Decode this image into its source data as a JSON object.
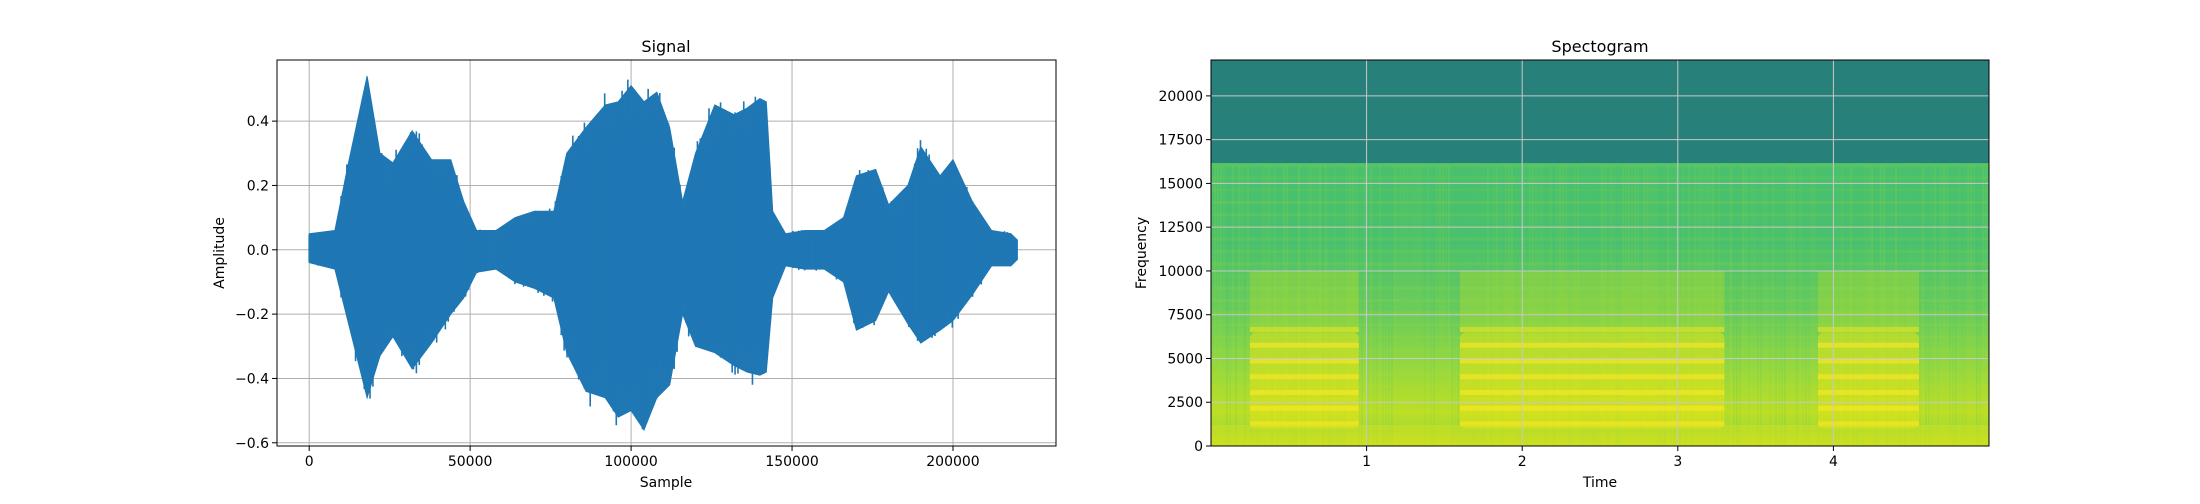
{
  "chart_data": [
    {
      "type": "line",
      "title": "Signal",
      "xlabel": "Sample",
      "ylabel": "Amplitude",
      "xlim": [
        -10000,
        232000
      ],
      "ylim": [
        -0.61,
        0.59
      ],
      "xticks": [
        0,
        50000,
        100000,
        150000,
        200000
      ],
      "xtick_labels": [
        "0",
        "50000",
        "100000",
        "150000",
        "200000"
      ],
      "yticks": [
        -0.6,
        -0.4,
        -0.2,
        0.0,
        0.2,
        0.4
      ],
      "ytick_labels": [
        "−0.6",
        "−0.4",
        "−0.2",
        "0.0",
        "0.2",
        "0.4"
      ],
      "grid": true,
      "color": "#1f77b4",
      "series": [
        {
          "x": [
            0,
            8000,
            12000,
            18000,
            22000,
            26000,
            32000,
            38000,
            44000,
            48000,
            52000,
            58000,
            64000,
            70000,
            76000,
            80000,
            86000,
            92000,
            96000,
            100000,
            104000,
            108000,
            112000,
            116000,
            120000,
            126000,
            132000,
            136000,
            140000,
            142000,
            144000,
            148000,
            154000,
            160000,
            166000,
            170000,
            176000,
            180000,
            186000,
            190000,
            196000,
            200000,
            206000,
            212000,
            218000,
            220000
          ],
          "upper": [
            0.05,
            0.06,
            0.26,
            0.54,
            0.3,
            0.27,
            0.37,
            0.28,
            0.28,
            0.15,
            0.06,
            0.06,
            0.1,
            0.12,
            0.12,
            0.3,
            0.38,
            0.45,
            0.46,
            0.51,
            0.46,
            0.49,
            0.38,
            0.15,
            0.3,
            0.45,
            0.42,
            0.44,
            0.47,
            0.46,
            0.12,
            0.05,
            0.06,
            0.06,
            0.1,
            0.23,
            0.25,
            0.14,
            0.2,
            0.32,
            0.23,
            0.28,
            0.15,
            0.06,
            0.05,
            0.03
          ],
          "lower": [
            -0.04,
            -0.06,
            -0.22,
            -0.46,
            -0.33,
            -0.27,
            -0.37,
            -0.29,
            -0.2,
            -0.15,
            -0.07,
            -0.06,
            -0.1,
            -0.12,
            -0.15,
            -0.32,
            -0.44,
            -0.46,
            -0.52,
            -0.5,
            -0.56,
            -0.46,
            -0.42,
            -0.2,
            -0.3,
            -0.32,
            -0.36,
            -0.38,
            -0.39,
            -0.38,
            -0.15,
            -0.05,
            -0.06,
            -0.06,
            -0.1,
            -0.25,
            -0.22,
            -0.13,
            -0.23,
            -0.29,
            -0.25,
            -0.22,
            -0.14,
            -0.05,
            -0.05,
            -0.03
          ]
        }
      ]
    },
    {
      "type": "heatmap",
      "title": "Spectogram",
      "xlabel": "Time",
      "ylabel": "Frequency",
      "xlim": [
        0,
        5.0
      ],
      "ylim": [
        0,
        22050
      ],
      "xticks": [
        1,
        2,
        3,
        4
      ],
      "xtick_labels": [
        "1",
        "2",
        "3",
        "4"
      ],
      "yticks": [
        0,
        2500,
        5000,
        7500,
        10000,
        12500,
        15000,
        17500,
        20000
      ],
      "ytick_labels": [
        "0",
        "2500",
        "5000",
        "7500",
        "10000",
        "12500",
        "15000",
        "17500",
        "20000"
      ],
      "grid": true,
      "colormap": "viridis",
      "cutoff_frequency": 16000,
      "upper_band_color": "#27807a",
      "loud_segments_time": [
        [
          0.25,
          0.95
        ],
        [
          1.6,
          3.3
        ],
        [
          3.9,
          4.55
        ]
      ],
      "loud_band_frequency": [
        1000,
        6500
      ]
    }
  ]
}
